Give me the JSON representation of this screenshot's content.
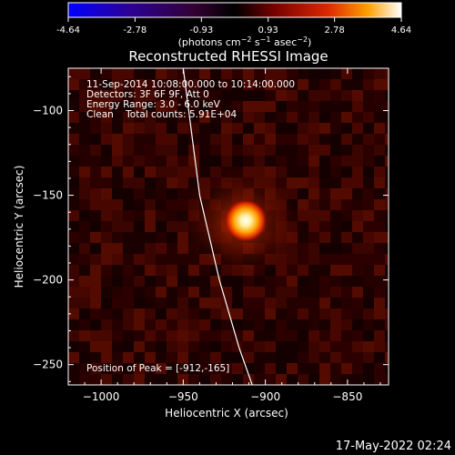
{
  "chart_data": {
    "type": "heatmap",
    "title": "Reconstructed RHESSI Image",
    "xlabel": "Heliocentric X (arcsec)",
    "ylabel": "Heliocentric Y (arcsec)",
    "xlim": [
      -1020,
      -825
    ],
    "ylim": [
      -262,
      -75
    ],
    "x_ticks": [
      -1000,
      -950,
      -900,
      -850
    ],
    "y_ticks": [
      -250,
      -200,
      -150,
      -100
    ],
    "colorbar": {
      "ticks": [
        -4.64,
        -2.78,
        -0.93,
        0.93,
        2.78,
        4.64
      ],
      "range": [
        -4.64,
        4.64
      ],
      "unit_label": "(photons cm-2 s-1 asec-2)",
      "colormap": [
        "#0000ff",
        "#2c0098",
        "#320032",
        "#000000",
        "#780000",
        "#dc2800",
        "#ffa000",
        "#ffffff"
      ]
    },
    "annotations": [
      "11-Sep-2014 10:08:00.000 to 10:14:00.000",
      "Detectors: 3F 6F 9F, Att 0",
      "Energy Range: 3.0 - 6.0 keV",
      "Clean    Total counts: 5.91E+04",
      "Position of Peak = [-912,-165]"
    ],
    "peak": {
      "x": -912,
      "y": -165
    },
    "limb_curve": [
      [
        -950,
        -75
      ],
      [
        -940,
        -150
      ],
      [
        -928,
        -200
      ],
      [
        -916,
        -240
      ],
      [
        -908,
        -262
      ]
    ]
  },
  "timestamp": "17-May-2022 02:24"
}
